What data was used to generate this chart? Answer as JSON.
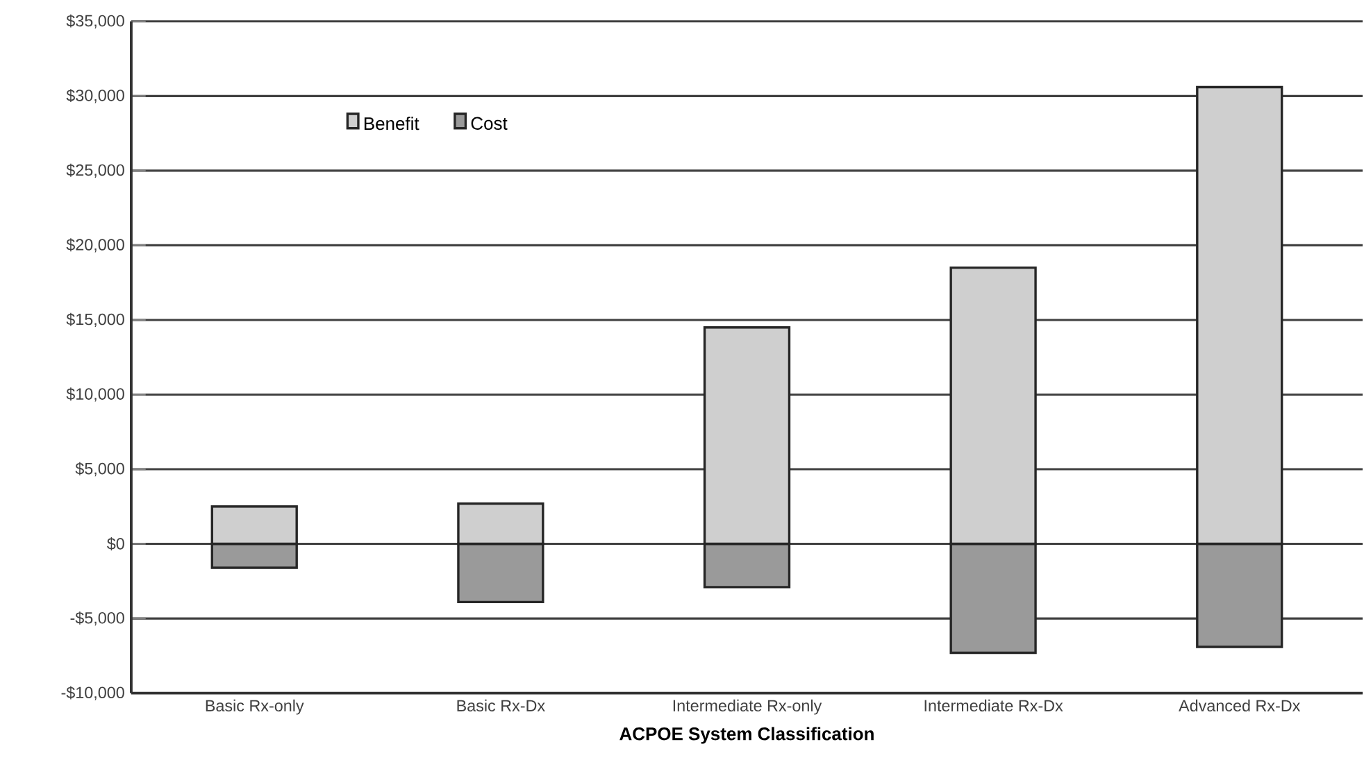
{
  "chart_data": {
    "type": "bar",
    "xlabel": "ACPOE System Classification",
    "categories": [
      "Basic Rx-only",
      "Basic Rx-Dx",
      "Intermediate Rx-only",
      "Intermediate Rx-Dx",
      "Advanced Rx-Dx"
    ],
    "series": [
      {
        "name": "Benefit",
        "color": "#cfcfcf",
        "values": [
          2500,
          2700,
          14500,
          18500,
          30600
        ]
      },
      {
        "name": "Cost",
        "color": "#9a9a9a",
        "values": [
          -1600,
          -3900,
          -2900,
          -7300,
          -6900
        ]
      }
    ],
    "ylim": [
      -10000,
      35000
    ],
    "yticks": [
      {
        "value": 35000,
        "label": "$35,000"
      },
      {
        "value": 30000,
        "label": "$30,000"
      },
      {
        "value": 25000,
        "label": "$25,000"
      },
      {
        "value": 20000,
        "label": "$20,000"
      },
      {
        "value": 15000,
        "label": "$15,000"
      },
      {
        "value": 10000,
        "label": "$10,000"
      },
      {
        "value": 5000,
        "label": "$5,000"
      },
      {
        "value": 0,
        "label": "$0"
      },
      {
        "value": -5000,
        "label": "-$5,000"
      },
      {
        "value": -10000,
        "label": "-$10,000"
      }
    ],
    "grid": "y",
    "legend": "top left",
    "stacked": true
  }
}
